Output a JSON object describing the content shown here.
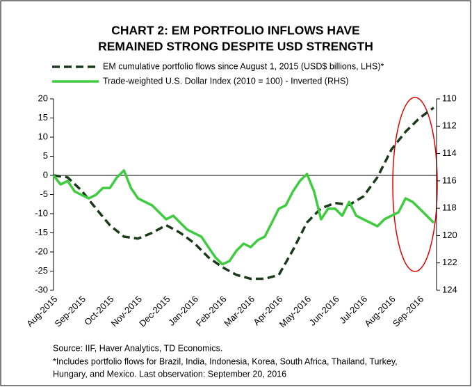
{
  "chart_data": {
    "type": "line",
    "title_lines": [
      "CHART 2: EM PORTFOLIO INFLOWS HAVE",
      "REMAINED STRONG DESPITE USD STRENGTH"
    ],
    "notes": [
      "Source: IIF, Haver Analytics, TD Economics.",
      "*Includes portfolio flows for Brazil, India, Indonesia, Korea, South Africa, Thailand, Turkey,",
      "Hungary, and Mexico. Last observation: September 20, 2016"
    ],
    "xlim": [
      0,
      13.6
    ],
    "xticks": [
      {
        "value": 0,
        "label": "Aug-2015"
      },
      {
        "value": 1,
        "label": "Sep-2015"
      },
      {
        "value": 2,
        "label": "Oct-2015"
      },
      {
        "value": 3,
        "label": "Nov-2015"
      },
      {
        "value": 4,
        "label": "Dec-2015"
      },
      {
        "value": 5,
        "label": "Jan-2016"
      },
      {
        "value": 6,
        "label": "Feb-2016"
      },
      {
        "value": 7,
        "label": "Mar-2016"
      },
      {
        "value": 8,
        "label": "Apr-2016"
      },
      {
        "value": 9,
        "label": "May-2016"
      },
      {
        "value": 10,
        "label": "Jun-2016"
      },
      {
        "value": 11,
        "label": "Jul-2016"
      },
      {
        "value": 12,
        "label": "Aug-2016"
      },
      {
        "value": 13,
        "label": "Sep-2016"
      }
    ],
    "ylim": [
      -30,
      20
    ],
    "yticks": [
      -30,
      -25,
      -20,
      -15,
      -10,
      -5,
      0,
      5,
      10,
      15,
      20
    ],
    "y2lim": [
      124,
      110
    ],
    "y2ticks": [
      110,
      112,
      114,
      116,
      118,
      120,
      122,
      124
    ],
    "y2_inverted": true,
    "series": [
      {
        "name": "EM cumulative portfolio flows since August 1, 2015 (USD$ billions, LHS)*",
        "color": "#1a3a1a",
        "dashed": true,
        "x": [
          0,
          0.5,
          1,
          1.5,
          2,
          2.5,
          3,
          3.5,
          4,
          4.5,
          5,
          5.5,
          6,
          6.5,
          7,
          7.5,
          8,
          8.5,
          9,
          9.5,
          10,
          10.5,
          11,
          11.5,
          12,
          12.5,
          13,
          13.5
        ],
        "values": [
          0,
          -0.5,
          -4,
          -8.6,
          -13,
          -16,
          -16.5,
          -15,
          -13,
          -15,
          -17.7,
          -21.4,
          -24,
          -26,
          -27,
          -27,
          -26,
          -19.5,
          -12.3,
          -8.6,
          -7.2,
          -7.7,
          -5.5,
          -0.5,
          6.8,
          11.4,
          15,
          17.7
        ]
      },
      {
        "name": "Trade-weighted U.S. Dollar Index (2010 = 100) - Inverted (RHS)",
        "color": "#3dcc3d",
        "axis": "y2",
        "x": [
          0,
          0.25,
          0.5,
          0.75,
          1,
          1.25,
          1.5,
          1.75,
          2,
          2.25,
          2.5,
          2.75,
          3,
          3.25,
          3.5,
          3.75,
          4,
          4.25,
          4.5,
          4.75,
          5,
          5.25,
          5.5,
          5.75,
          6,
          6.25,
          6.5,
          6.75,
          7,
          7.25,
          7.5,
          7.75,
          8,
          8.25,
          8.5,
          8.75,
          9,
          9.25,
          9.5,
          9.75,
          10,
          10.25,
          10.5,
          10.75,
          11,
          11.25,
          11.5,
          11.75,
          12,
          12.25,
          12.5,
          12.75,
          13,
          13.25,
          13.5
        ],
        "values": [
          115.6,
          116.26,
          116.0,
          116.77,
          117.03,
          117.28,
          117.03,
          116.52,
          116.52,
          115.75,
          115.24,
          116.52,
          117.28,
          117.54,
          117.79,
          118.3,
          118.81,
          118.55,
          119.06,
          119.57,
          119.83,
          120.08,
          120.85,
          121.6,
          122.1,
          121.86,
          121.1,
          120.59,
          120.85,
          120.34,
          120.08,
          119.06,
          118.04,
          117.79,
          116.77,
          116.0,
          115.5,
          116.77,
          118.81,
          118.04,
          118.04,
          118.55,
          117.54,
          118.55,
          118.81,
          119.06,
          119.32,
          118.81,
          118.55,
          118.3,
          117.28,
          117.54,
          118.04,
          118.55,
          119.06
        ]
      }
    ]
  }
}
